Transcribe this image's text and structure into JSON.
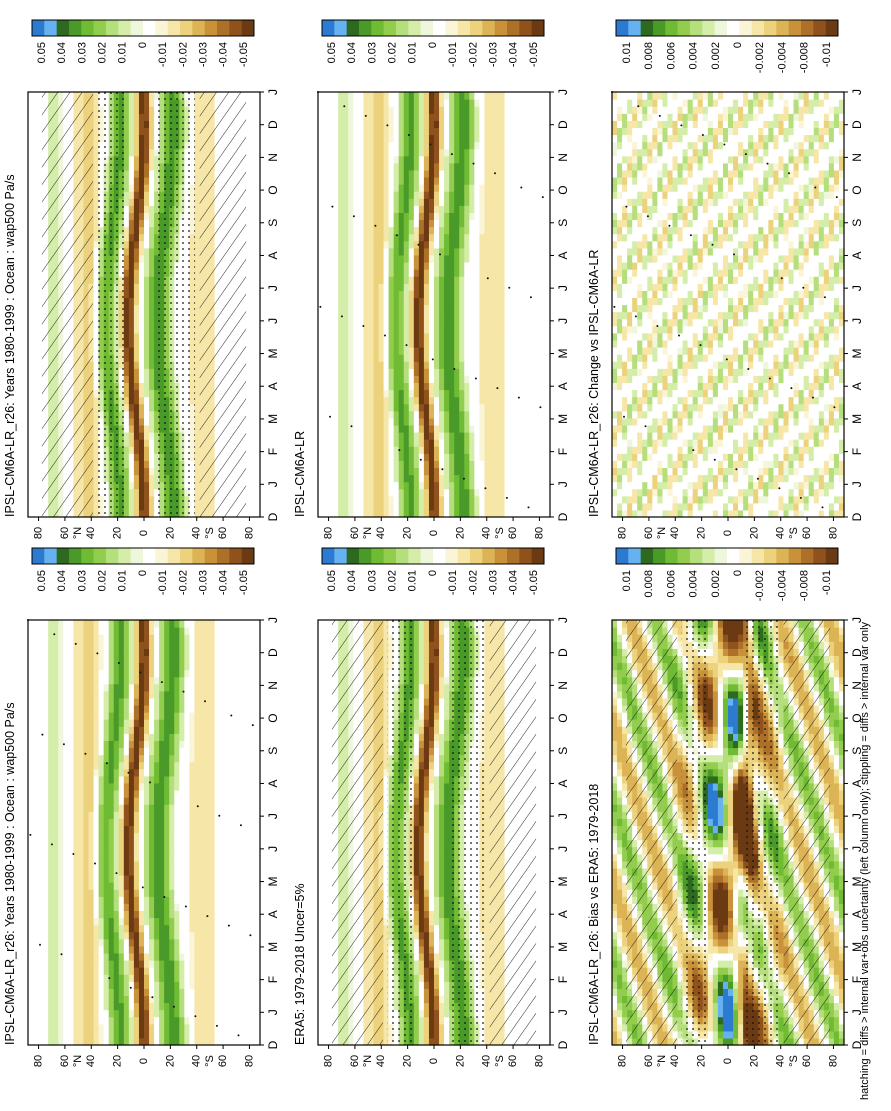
{
  "figure": {
    "orientation": "rotated 90 degrees counter-clockwise",
    "footnote": "hatching = diffs > internal var+obs uncertainty (left column only); stippling = diffs > internal var only"
  },
  "palettes": {
    "main": [
      "#2c7bd0",
      "#66b2f0",
      "#2d6a1f",
      "#4a9a2a",
      "#6fbb33",
      "#93cd4e",
      "#b5de7c",
      "#d4eda8",
      "#eef7dc",
      "#ffffff",
      "#fbf5d8",
      "#f6e6a8",
      "#ecd27c",
      "#ddb455",
      "#c9923a",
      "#ad7028",
      "#8f521c",
      "#6b3a12"
    ]
  },
  "chart_data": [
    {
      "id": "model-mean",
      "type": "heatmap",
      "title": "IPSL-CM6A-LR_r26: Years 1980-1999 : Ocean : wap500 Pa/s",
      "x": [
        "D",
        "J",
        "F",
        "M",
        "A",
        "M",
        "J",
        "J",
        "A",
        "S",
        "O",
        "N",
        "D",
        "J"
      ],
      "y_ticks": [
        "80",
        "60",
        "40",
        "20",
        "0",
        "20",
        "40",
        "60",
        "80"
      ],
      "y_hemisphere_labels": [
        "°N",
        "°S"
      ],
      "colorbar_ticks": [
        "0.05",
        "0.04",
        "0.03",
        "0.02",
        "0.01",
        "0",
        "-0.01",
        "-0.02",
        "-0.03",
        "-0.04",
        "-0.05"
      ],
      "hatching": true,
      "stippling": "dense"
    },
    {
      "id": "model-mean-internal",
      "type": "heatmap",
      "title": "IPSL-CM6A-LR_r26: Years 1980-1999 : Ocean : wap500 Pa/s",
      "x": [
        "D",
        "J",
        "F",
        "M",
        "A",
        "M",
        "J",
        "J",
        "A",
        "S",
        "O",
        "N",
        "D",
        "J"
      ],
      "y_ticks": [
        "80",
        "60",
        "40",
        "20",
        "0",
        "20",
        "40",
        "60",
        "80"
      ],
      "y_hemisphere_labels": [
        "°N",
        "°S"
      ],
      "colorbar_ticks": [
        "0.05",
        "0.04",
        "0.03",
        "0.02",
        "0.01",
        "0",
        "-0.01",
        "-0.02",
        "-0.03",
        "-0.04",
        "-0.05"
      ],
      "hatching": false,
      "stippling": "sparse"
    },
    {
      "id": "era5",
      "type": "heatmap",
      "title": "ERA5: 1979-2018 Uncer=5%",
      "x": [
        "D",
        "J",
        "F",
        "M",
        "A",
        "M",
        "J",
        "J",
        "A",
        "S",
        "O",
        "N",
        "D",
        "J"
      ],
      "y_ticks": [
        "80",
        "60",
        "40",
        "20",
        "0",
        "20",
        "40",
        "60",
        "80"
      ],
      "y_hemisphere_labels": [
        "°N",
        "°S"
      ],
      "colorbar_ticks": [
        "0.05",
        "0.04",
        "0.03",
        "0.02",
        "0.01",
        "0",
        "-0.01",
        "-0.02",
        "-0.03",
        "-0.04",
        "-0.05"
      ],
      "hatching": true,
      "stippling": "dense"
    },
    {
      "id": "ensemble",
      "type": "heatmap",
      "title": "IPSL-CM6A-LR",
      "x": [
        "D",
        "J",
        "F",
        "M",
        "A",
        "M",
        "J",
        "J",
        "A",
        "S",
        "O",
        "N",
        "D",
        "J"
      ],
      "y_ticks": [
        "80",
        "60",
        "40",
        "20",
        "0",
        "20",
        "40",
        "60",
        "80"
      ],
      "y_hemisphere_labels": [
        "°N",
        "°S"
      ],
      "colorbar_ticks": [
        "0.05",
        "0.04",
        "0.03",
        "0.02",
        "0.01",
        "0",
        "-0.01",
        "-0.02",
        "-0.03",
        "-0.04",
        "-0.05"
      ],
      "hatching": false,
      "stippling": "sparse"
    },
    {
      "id": "bias",
      "type": "heatmap",
      "title": "IPSL-CM6A-LR_r26: Bias vs ERA5: 1979-2018",
      "x": [
        "D",
        "J",
        "F",
        "M",
        "A",
        "M",
        "J",
        "J",
        "A",
        "S",
        "O",
        "N",
        "D",
        "J"
      ],
      "y_ticks": [
        "80",
        "60",
        "40",
        "20",
        "0",
        "20",
        "40",
        "60",
        "80"
      ],
      "y_hemisphere_labels": [
        "°N",
        "°S"
      ],
      "colorbar_ticks": [
        "0.01",
        "0.008",
        "0.006",
        "0.004",
        "0.002",
        "0",
        "-0.002",
        "-0.004",
        "-0.008",
        "-0.01"
      ],
      "hatching": true,
      "stippling": "dense"
    },
    {
      "id": "change",
      "type": "heatmap",
      "title": "IPSL-CM6A-LR_r26: Change vs IPSL-CM6A-LR",
      "x": [
        "D",
        "J",
        "F",
        "M",
        "A",
        "M",
        "J",
        "J",
        "A",
        "S",
        "O",
        "N",
        "D",
        "J"
      ],
      "y_ticks": [
        "80",
        "60",
        "40",
        "20",
        "0",
        "20",
        "40",
        "60",
        "80"
      ],
      "y_hemisphere_labels": [
        "°N",
        "°S"
      ],
      "colorbar_ticks": [
        "0.01",
        "0.008",
        "0.006",
        "0.004",
        "0.002",
        "0",
        "-0.002",
        "-0.004",
        "-0.008",
        "-0.01"
      ],
      "hatching": false,
      "stippling": "sparse"
    }
  ]
}
